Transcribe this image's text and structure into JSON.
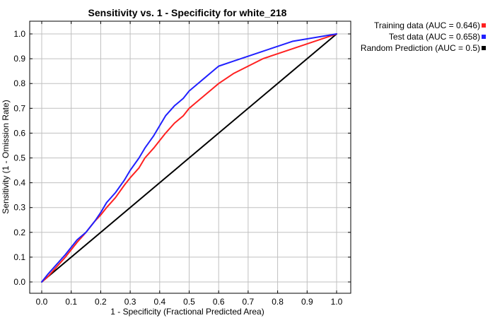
{
  "chart_data": {
    "type": "line",
    "title": "Sensitivity vs. 1 - Specificity for white_218",
    "xlabel": "1 - Specificity  (Fractional Predicted Area)",
    "ylabel": "Sensitivity  (1 - Omission Rate)",
    "xlim": [
      0.0,
      1.0
    ],
    "ylim": [
      0.0,
      1.0
    ],
    "xticks": [
      "0.0",
      "0.1",
      "0.2",
      "0.3",
      "0.4",
      "0.5",
      "0.6",
      "0.7",
      "0.8",
      "0.9",
      "1.0"
    ],
    "yticks": [
      "0.0",
      "0.1",
      "0.2",
      "0.3",
      "0.4",
      "0.5",
      "0.6",
      "0.7",
      "0.8",
      "0.9",
      "1.0"
    ],
    "grid": true,
    "legend_position": "outside-top-right",
    "series": [
      {
        "name": "Training data (AUC = 0.646)",
        "color": "#ff2020",
        "x": [
          0.0,
          0.02,
          0.05,
          0.08,
          0.1,
          0.12,
          0.15,
          0.18,
          0.2,
          0.22,
          0.25,
          0.28,
          0.3,
          0.33,
          0.35,
          0.38,
          0.4,
          0.42,
          0.45,
          0.48,
          0.5,
          0.52,
          0.55,
          0.58,
          0.6,
          0.65,
          0.7,
          0.75,
          0.8,
          0.85,
          0.9,
          0.95,
          1.0
        ],
        "y": [
          0.0,
          0.02,
          0.06,
          0.1,
          0.13,
          0.16,
          0.2,
          0.245,
          0.27,
          0.3,
          0.34,
          0.39,
          0.42,
          0.46,
          0.5,
          0.54,
          0.57,
          0.6,
          0.64,
          0.67,
          0.7,
          0.72,
          0.75,
          0.78,
          0.8,
          0.84,
          0.87,
          0.9,
          0.92,
          0.94,
          0.96,
          0.98,
          1.0
        ]
      },
      {
        "name": "Test data (AUC = 0.658)",
        "color": "#2020ff",
        "x": [
          0.0,
          0.02,
          0.05,
          0.08,
          0.1,
          0.12,
          0.15,
          0.18,
          0.2,
          0.22,
          0.25,
          0.28,
          0.3,
          0.33,
          0.35,
          0.38,
          0.4,
          0.42,
          0.45,
          0.48,
          0.5,
          0.52,
          0.55,
          0.58,
          0.6,
          0.65,
          0.7,
          0.75,
          0.8,
          0.85,
          0.9,
          0.95,
          1.0
        ],
        "y": [
          0.0,
          0.03,
          0.07,
          0.11,
          0.14,
          0.17,
          0.2,
          0.245,
          0.28,
          0.32,
          0.36,
          0.41,
          0.45,
          0.5,
          0.54,
          0.59,
          0.63,
          0.67,
          0.71,
          0.74,
          0.77,
          0.79,
          0.82,
          0.85,
          0.87,
          0.89,
          0.91,
          0.93,
          0.95,
          0.97,
          0.98,
          0.99,
          1.0
        ]
      },
      {
        "name": "Random Prediction (AUC = 0.5)",
        "color": "#000000",
        "x": [
          0.0,
          1.0
        ],
        "y": [
          0.0,
          1.0
        ]
      }
    ]
  }
}
